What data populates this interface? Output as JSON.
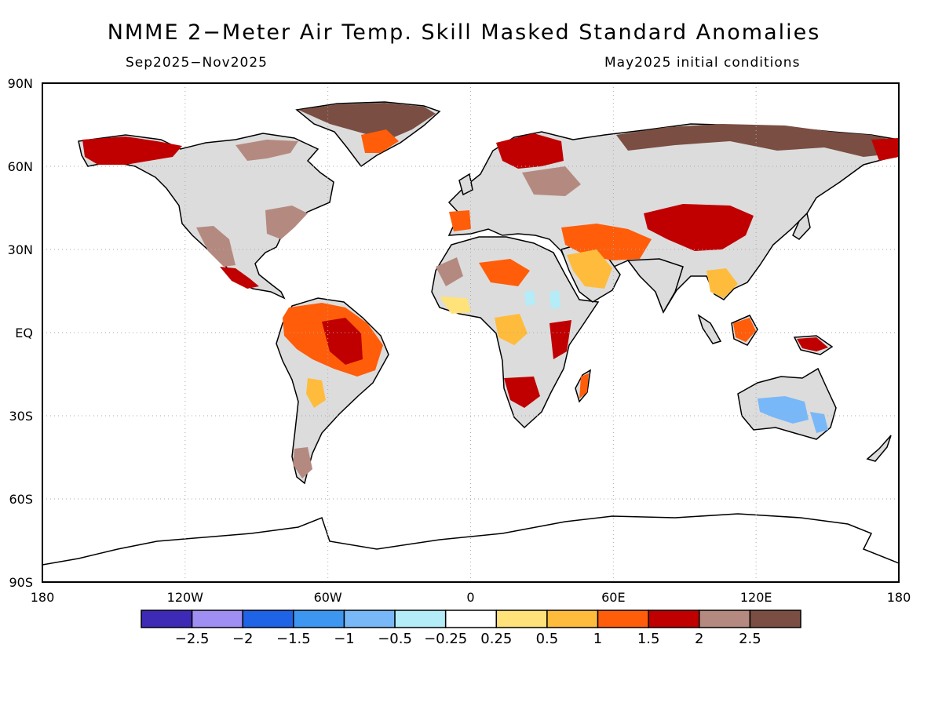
{
  "map": {
    "title": "NMME 2−Meter Air Temp. Skill Masked Standard Anomalies",
    "subtitle_left": "Sep2025−Nov2025",
    "subtitle_right": "May2025 initial conditions",
    "lat_labels": [
      {
        "value": 90,
        "text": "90N"
      },
      {
        "value": 60,
        "text": "60N"
      },
      {
        "value": 30,
        "text": "30N"
      },
      {
        "value": 0,
        "text": "EQ"
      },
      {
        "value": -30,
        "text": "30S"
      },
      {
        "value": -60,
        "text": "60S"
      },
      {
        "value": -90,
        "text": "90S"
      }
    ],
    "lon_labels": [
      {
        "value": -180,
        "text": "180"
      },
      {
        "value": -120,
        "text": "120W"
      },
      {
        "value": -60,
        "text": "60W"
      },
      {
        "value": 0,
        "text": "0"
      },
      {
        "value": 60,
        "text": "60E"
      },
      {
        "value": 120,
        "text": "120E"
      },
      {
        "value": 180,
        "text": "180"
      }
    ],
    "colorbar": {
      "colors": [
        "#3d2bb5",
        "#9f8ff2",
        "#1f63e6",
        "#3d97f0",
        "#78b8f8",
        "#b4ecf7",
        "#ffffff",
        "#ffe27a",
        "#ffbc3c",
        "#ff5d0a",
        "#c00000",
        "#b48a80",
        "#7a4e42"
      ],
      "labels": [
        "−2.5",
        "−2",
        "−1.5",
        "−1",
        "−0.5",
        "−0.25",
        "0.25",
        "0.5",
        "1",
        "1.5",
        "2",
        "2.5"
      ]
    },
    "colors": {
      "land_no_skill": "#dcdcdc",
      "coast": "#000000",
      "grid": "#aaaaaa"
    }
  }
}
